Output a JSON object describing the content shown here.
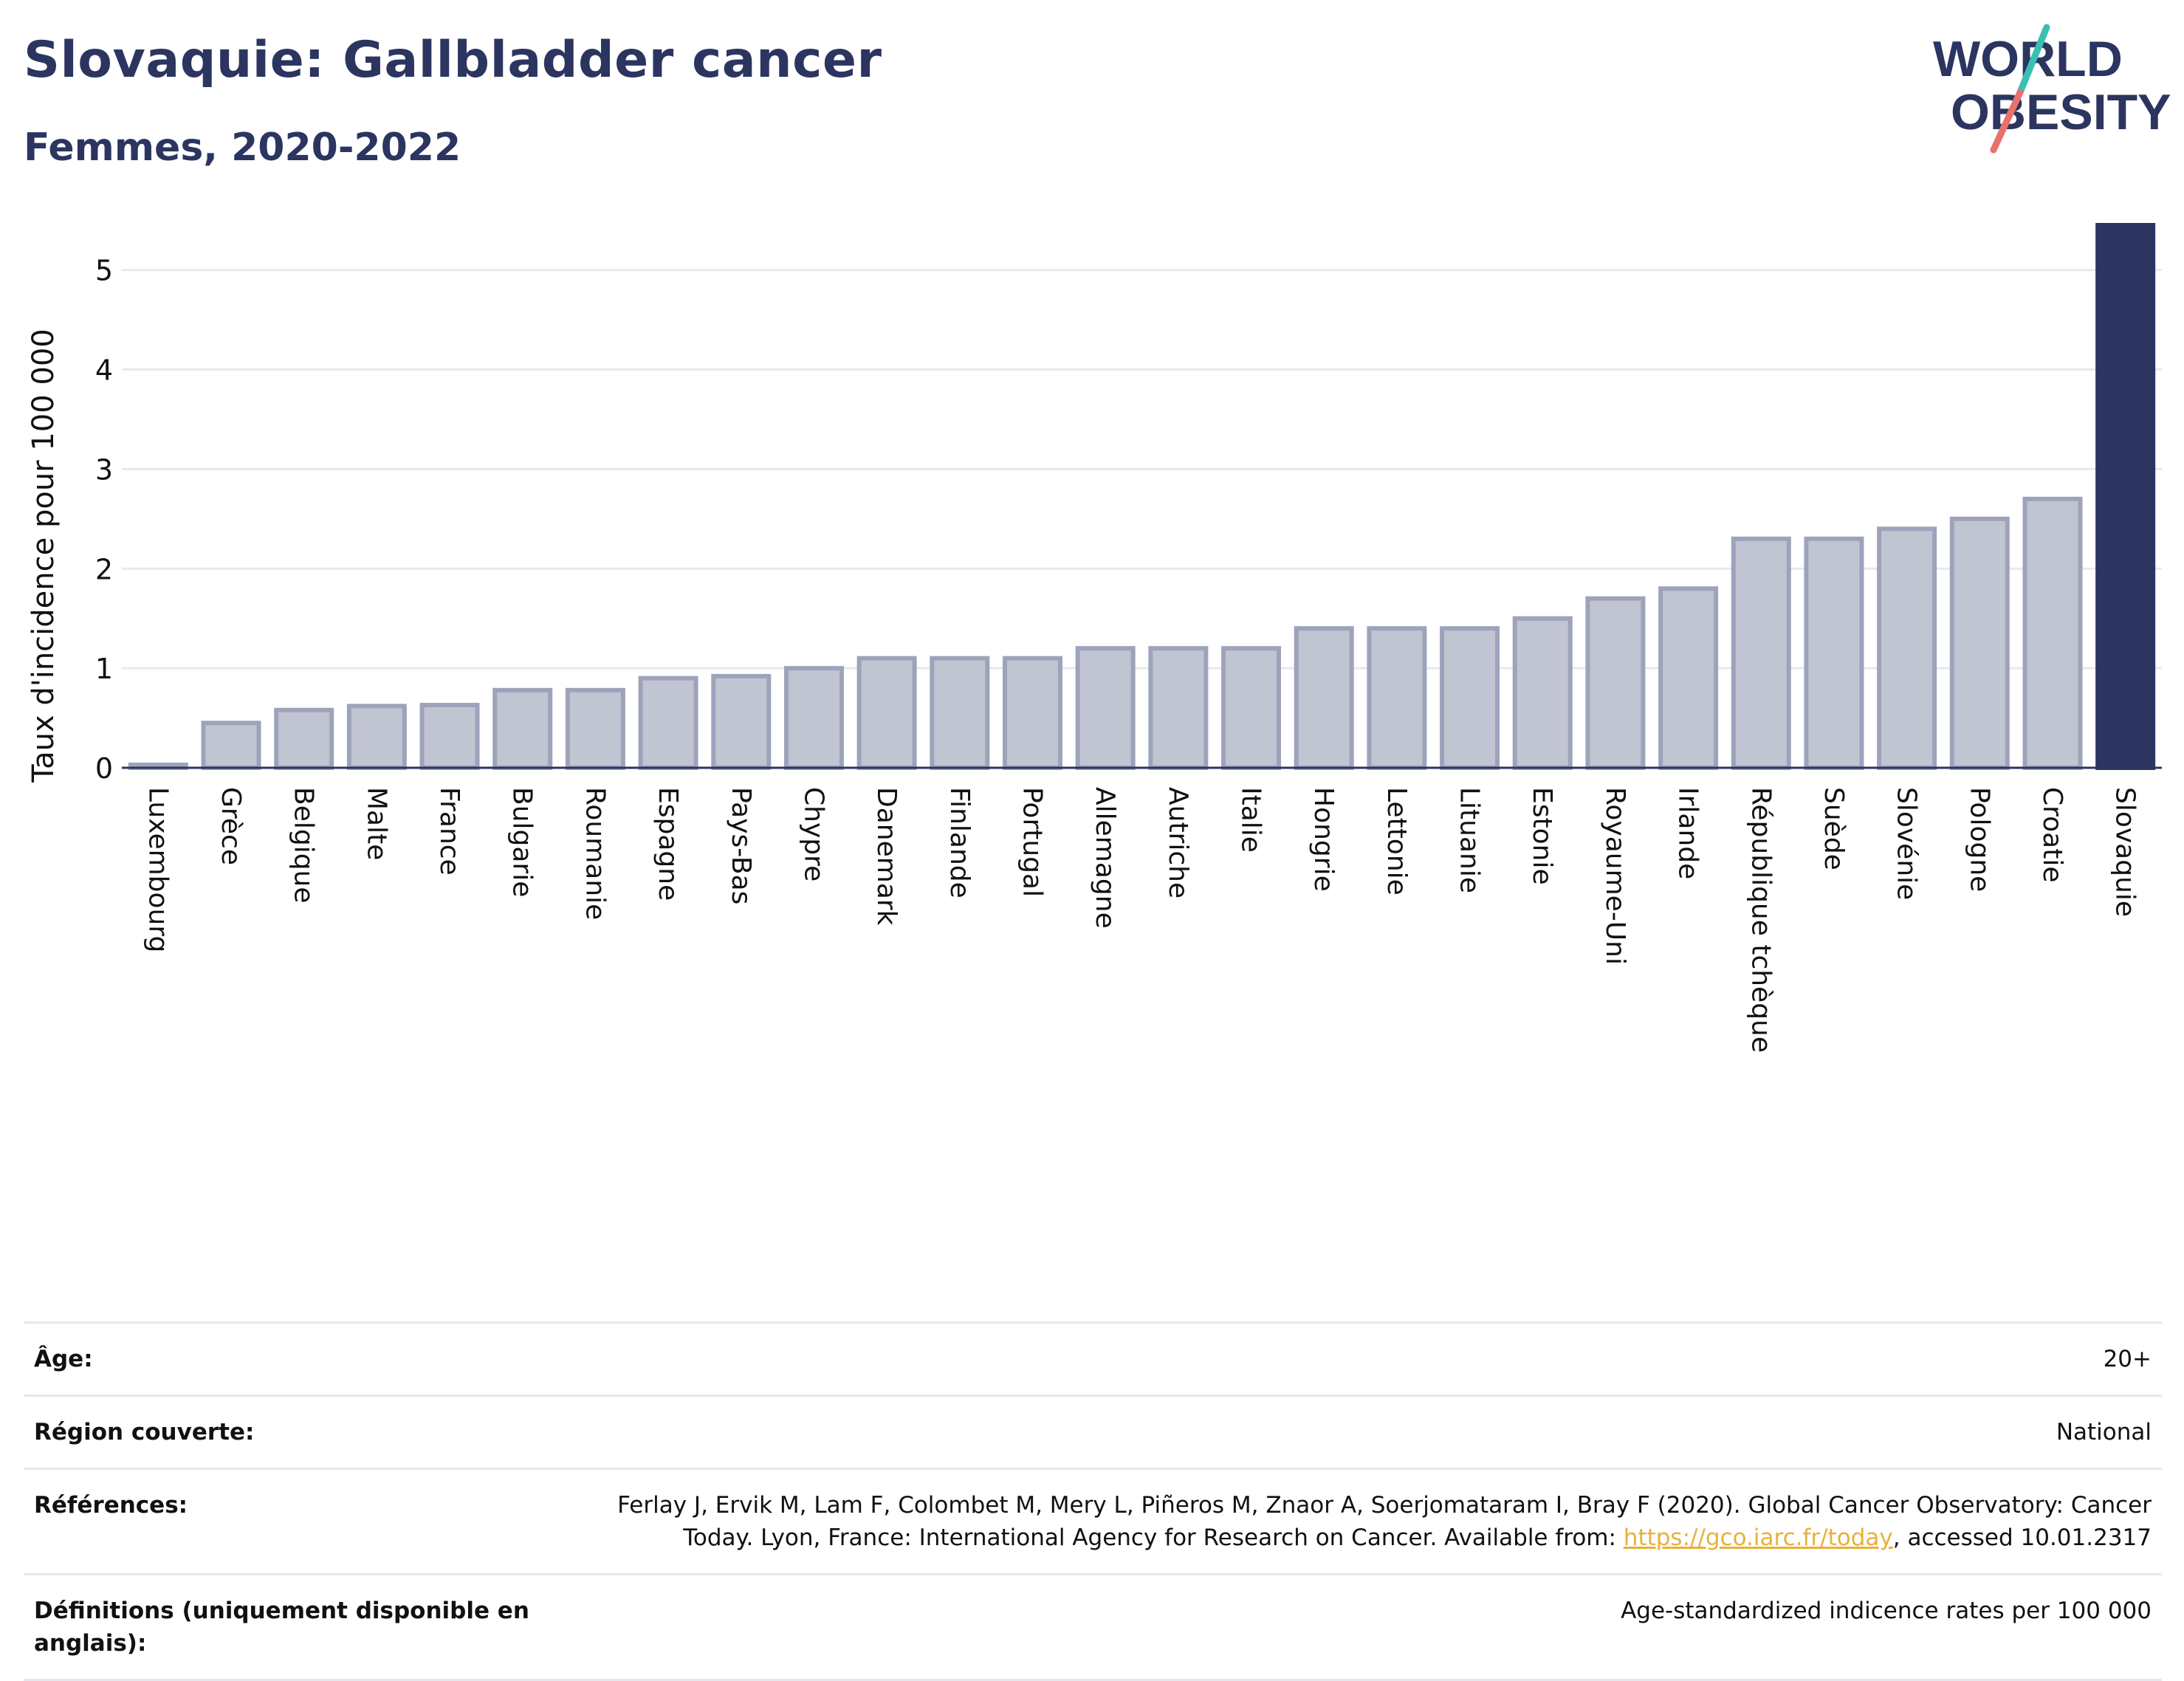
{
  "header": {
    "title": "Slovaquie: Gallbladder cancer",
    "subtitle": "Femmes, 2020-2022"
  },
  "logo": {
    "line1": "WORLD",
    "line2": "OBESITY",
    "colors": {
      "text": "#2b3560",
      "slash_top": "#3bbfb4",
      "slash_bottom": "#e8716b"
    }
  },
  "colors": {
    "bar_default": "#c1c4d1",
    "bar_border": "#9ea3bc",
    "bar_highlight": "#2b3560",
    "grid": "#e8e9ee",
    "axis": "#2b3560"
  },
  "chart_data": {
    "type": "bar",
    "ylabel": "Taux d'incidence pour 100 000",
    "ylim": [
      0,
      5.45
    ],
    "yticks": [
      0,
      1,
      2,
      3,
      4,
      5
    ],
    "grid": true,
    "highlight": "Slovaquie",
    "categories": [
      "Luxembourg",
      "Grèce",
      "Belgique",
      "Malte",
      "France",
      "Bulgarie",
      "Roumanie",
      "Espagne",
      "Pays-Bas",
      "Chypre",
      "Danemark",
      "Finlande",
      "Portugal",
      "Allemagne",
      "Autriche",
      "Italie",
      "Hongrie",
      "Lettonie",
      "Lituanie",
      "Estonie",
      "Royaume-Uni",
      "Irlande",
      "République tchèque",
      "Suède",
      "Slovénie",
      "Pologne",
      "Croatie",
      "Slovaquie"
    ],
    "values": [
      0.03,
      0.45,
      0.58,
      0.62,
      0.63,
      0.78,
      0.78,
      0.9,
      0.92,
      1.0,
      1.1,
      1.1,
      1.1,
      1.2,
      1.2,
      1.2,
      1.4,
      1.4,
      1.4,
      1.5,
      1.7,
      1.8,
      2.3,
      2.3,
      2.4,
      2.5,
      2.7,
      5.45
    ]
  },
  "info": [
    {
      "label": "Âge:",
      "value": "20+"
    },
    {
      "label": "Région couverte:",
      "value": "National"
    },
    {
      "label": "Références:",
      "value_prefix": "Ferlay J, Ervik M, Lam F, Colombet M, Mery L, Piñeros M, Znaor A, Soerjomataram I, Bray F (2020). Global Cancer Observatory: Cancer Today. Lyon, France: International Agency for Research on Cancer. Available from: ",
      "link": "https://gco.iarc.fr/today",
      "value_suffix": ", accessed 10.01.2317"
    },
    {
      "label": "Définitions (uniquement disponible en anglais):",
      "value": "Age-standardized indicence rates per 100 000"
    }
  ]
}
